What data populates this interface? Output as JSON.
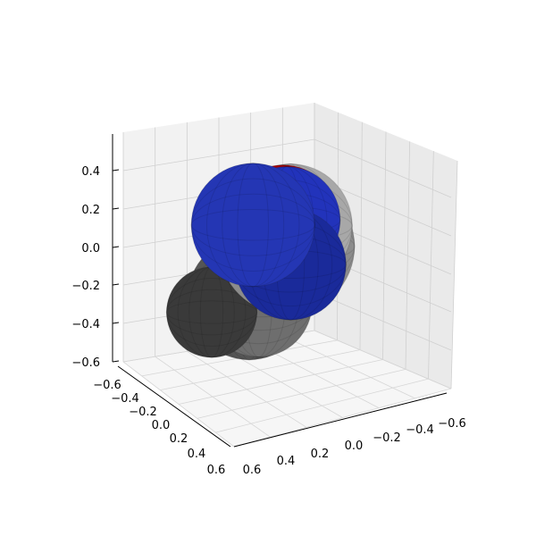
{
  "chart_data": {
    "type": "3d-surface",
    "title": "",
    "xlabel": "",
    "ylabel": "",
    "zlabel": "",
    "grid": true,
    "axes": {
      "z": {
        "ticks": [
          -0.6,
          -0.4,
          -0.2,
          0.0,
          0.2,
          0.4
        ],
        "labels": [
          "−0.6",
          "−0.4",
          "−0.2",
          "0.0",
          "0.2",
          "0.4"
        ]
      },
      "left": {
        "ticks": [
          -0.6,
          -0.4,
          -0.2,
          0.0,
          0.2,
          0.4,
          0.6
        ],
        "labels": [
          "−0.6",
          "−0.4",
          "−0.2",
          "0.0",
          "0.2",
          "0.4",
          "0.6"
        ]
      },
      "right": {
        "ticks": [
          0.6,
          0.4,
          0.2,
          0.0,
          -0.2,
          -0.4,
          -0.6
        ],
        "labels": [
          "0.6",
          "0.4",
          "0.2",
          "0.0",
          "−0.2",
          "−0.4",
          "−0.6"
        ]
      }
    },
    "spheres": [
      {
        "color": "#555555",
        "x": -0.05,
        "y": 0.05,
        "z": -0.25,
        "r": 0.3
      },
      {
        "color": "#6e6e6e",
        "x": 0.1,
        "y": 0.15,
        "z": -0.22,
        "r": 0.26
      },
      {
        "color": "#3a3a3a",
        "x": -0.1,
        "y": 0.2,
        "z": -0.3,
        "r": 0.22
      },
      {
        "color": "#8c8c8c",
        "x": 0.05,
        "y": -0.05,
        "z": 0.02,
        "r": 0.33
      },
      {
        "color": "#a8a8a8",
        "x": 0.0,
        "y": -0.12,
        "z": 0.1,
        "r": 0.3
      },
      {
        "color": "#b40000",
        "x": -0.12,
        "y": -0.2,
        "z": 0.08,
        "r": 0.27
      },
      {
        "color": "#2233bb",
        "x": -0.18,
        "y": -0.28,
        "z": 0.05,
        "r": 0.26
      },
      {
        "color": "#1a2a9a",
        "x": 0.22,
        "y": 0.1,
        "z": 0.0,
        "r": 0.27
      },
      {
        "color": "#2436b4",
        "x": 0.0,
        "y": 0.08,
        "z": 0.15,
        "r": 0.3
      }
    ]
  }
}
